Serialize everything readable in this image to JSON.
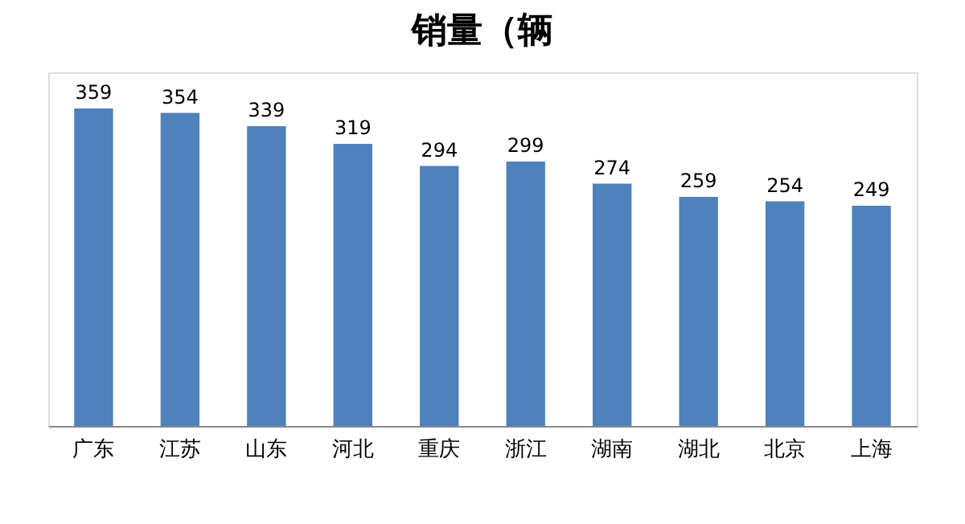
{
  "chart_data": {
    "type": "bar",
    "title": "销量（辆",
    "categories": [
      "广东",
      "江苏",
      "山东",
      "河北",
      "重庆",
      "浙江",
      "湖南",
      "湖北",
      "北京",
      "上海"
    ],
    "values": [
      359,
      354,
      339,
      319,
      294,
      299,
      274,
      259,
      254,
      249
    ],
    "color": "#4f81bd",
    "data_labels": true,
    "grid": false,
    "tick_labels": "x"
  }
}
